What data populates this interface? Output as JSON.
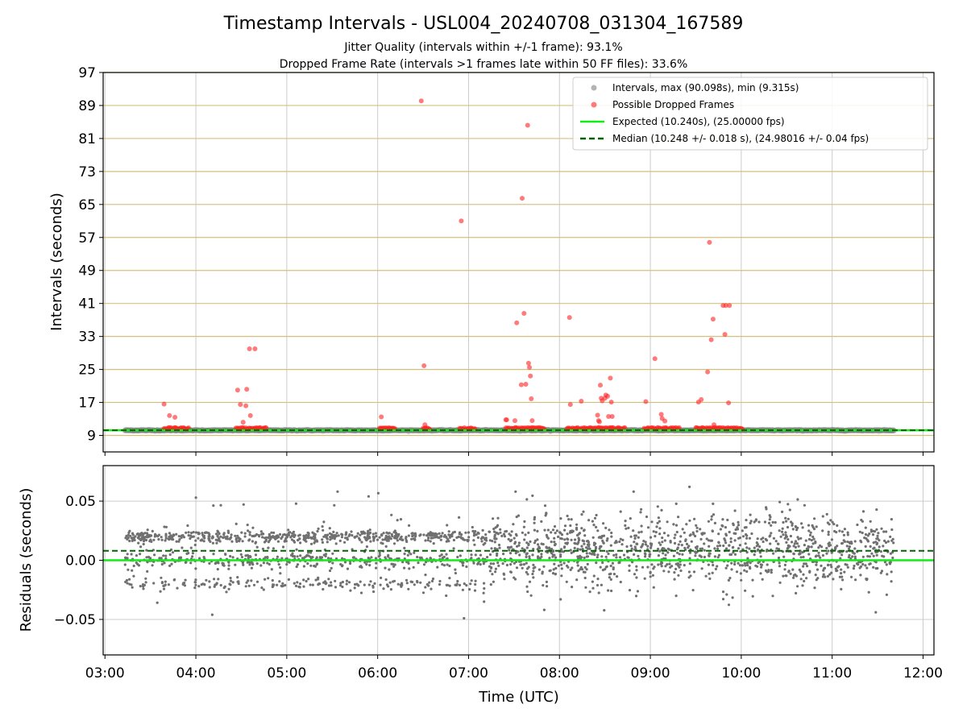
{
  "chart_data": {
    "title": "Timestamp Intervals - USL004_20240708_031304_167589",
    "subtitles": [
      "Jitter Quality (intervals within +/-1 frame): 93.1%",
      "Dropped Frame Rate (intervals >1 frames late within 50 FF files): 33.6%"
    ],
    "xlabel": "Time (UTC)",
    "x_ticks": [
      "03:00",
      "04:00",
      "05:00",
      "06:00",
      "07:00",
      "08:00",
      "09:00",
      "10:00",
      "11:00",
      "12:00"
    ],
    "x_range_hours": [
      2.98,
      12.12
    ],
    "data_time_range_hours": [
      3.22,
      11.68
    ],
    "colors": {
      "intervals": "#808080",
      "dropped": "#ff2222",
      "expected": "#11ee11",
      "median": "#006400",
      "gridline_highlight": "#d4c07c"
    },
    "panels": [
      {
        "type": "scatter",
        "ylabel": "Intervals (seconds)",
        "ylim": [
          5,
          97
        ],
        "y_ticks": [
          "9",
          "17",
          "25",
          "33",
          "41",
          "49",
          "57",
          "65",
          "73",
          "81",
          "89",
          "97"
        ],
        "legend_position": "upper right",
        "legend": [
          "Intervals, max (90.098s), min (9.315s)",
          "Possible Dropped Frames",
          "Expected (10.240s), (25.00000 fps)",
          "Median (10.248 +/- 0.018 s), (24.98016 +/- 0.04 fps)"
        ],
        "expected_line": 10.24,
        "median_line": 10.248,
        "dropped_frames": {
          "x_hours": [
            3.65,
            3.71,
            3.77,
            4.46,
            4.49,
            4.52,
            4.55,
            4.56,
            4.59,
            4.6,
            4.65,
            6.04,
            6.48,
            6.51,
            6.52,
            6.92,
            7.41,
            7.42,
            7.51,
            7.53,
            7.58,
            7.59,
            7.61,
            7.63,
            7.65,
            7.66,
            7.67,
            7.68,
            7.69,
            7.7,
            8.11,
            8.12,
            8.24,
            8.42,
            8.43,
            8.44,
            8.45,
            8.46,
            8.47,
            8.5,
            8.51,
            8.53,
            8.54,
            8.56,
            8.57,
            8.58,
            8.95,
            9.05,
            9.12,
            9.13,
            9.16,
            9.53,
            9.56,
            9.63,
            9.65,
            9.67,
            9.69,
            9.7,
            9.8,
            9.82,
            9.83,
            9.86,
            9.87
          ],
          "y_seconds": [
            16.6,
            13.8,
            13.4,
            20.0,
            16.5,
            12.2,
            16.2,
            20.2,
            30.0,
            13.8,
            30.0,
            13.5,
            90.1,
            25.9,
            11.6,
            61.0,
            12.8,
            12.8,
            12.6,
            36.3,
            21.3,
            66.5,
            38.6,
            21.4,
            84.2,
            26.5,
            25.5,
            23.4,
            17.9,
            12.6,
            37.6,
            16.5,
            17.3,
            13.9,
            12.6,
            12.3,
            21.2,
            18.0,
            17.4,
            18.0,
            18.8,
            18.5,
            13.6,
            22.9,
            17.1,
            13.6,
            17.2,
            27.6,
            14.1,
            13.1,
            12.5,
            17.1,
            17.7,
            24.4,
            55.8,
            32.2,
            37.2,
            11.6,
            40.5,
            33.5,
            40.5,
            16.9,
            40.5
          ]
        }
      },
      {
        "type": "scatter",
        "ylabel": "Residuals (seconds)",
        "ylim": [
          -0.08,
          0.08
        ],
        "y_ticks": [
          "0.05",
          "0.00",
          "−0.05"
        ],
        "expected_residual": 0.0,
        "median_residual": 0.008,
        "notable_points": {
          "x_hours": [
            9.43,
            5.9,
            4.0,
            6.95,
            4.18,
            11.48
          ],
          "y_seconds": [
            0.062,
            0.054,
            0.053,
            -0.049,
            -0.046,
            -0.044
          ]
        }
      }
    ]
  }
}
